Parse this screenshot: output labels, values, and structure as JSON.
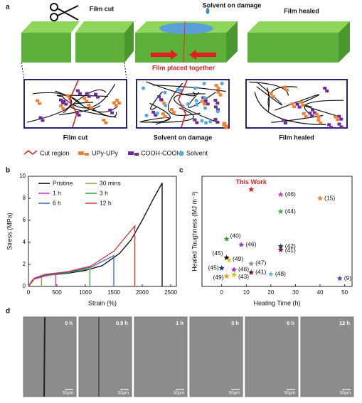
{
  "panel_a": {
    "label": "a",
    "top_labels": [
      "Film cut",
      "Solvent on damage",
      "Film healed"
    ],
    "middle_label": "Film placed together",
    "bottom_labels": [
      "Film cut",
      "Solvent on damage",
      "Film healed"
    ],
    "legend": [
      "Cut region",
      "UPy-UPy",
      "COOH-COOH",
      "Solvent"
    ]
  },
  "chart_data": [
    {
      "type": "line",
      "label": "b",
      "xlabel": "Strain (%)",
      "ylabel": "Stress (MPa)",
      "xlim": [
        0,
        2600
      ],
      "xticks": [
        0,
        500,
        1000,
        1500,
        2000,
        2500
      ],
      "ylim": [
        0,
        10
      ],
      "yticks": [
        0,
        2,
        4,
        6,
        8,
        10
      ],
      "series": [
        {
          "name": "Pristine",
          "color": "#000000",
          "x": [
            0,
            100,
            300,
            700,
            1000,
            1300,
            1600,
            1800,
            2000,
            2200,
            2350,
            2350
          ],
          "values": [
            0,
            0.7,
            1.0,
            1.2,
            1.45,
            1.9,
            3.0,
            4.2,
            6.0,
            8.0,
            9.4,
            0
          ]
        },
        {
          "name": "30 mins",
          "color": "#8a9a3a",
          "x": [
            0,
            60,
            150,
            230,
            230
          ],
          "values": [
            0,
            0.55,
            0.8,
            0.9,
            0
          ]
        },
        {
          "name": "1 h",
          "color": "#d62fc8",
          "x": [
            0,
            100,
            300,
            480,
            480
          ],
          "values": [
            0,
            0.65,
            0.95,
            1.1,
            0
          ]
        },
        {
          "name": "3 h",
          "color": "#3aa03a",
          "x": [
            0,
            100,
            300,
            700,
            1080,
            1080
          ],
          "values": [
            0,
            0.7,
            1.0,
            1.25,
            1.6,
            0
          ]
        },
        {
          "name": "6 h",
          "color": "#3a5fd0",
          "x": [
            0,
            100,
            300,
            700,
            1100,
            1500,
            1500
          ],
          "values": [
            0,
            0.7,
            1.05,
            1.3,
            1.75,
            2.8,
            0
          ]
        },
        {
          "name": "12 h",
          "color": "#e03030",
          "x": [
            0,
            100,
            300,
            700,
            1100,
            1500,
            1870,
            1870
          ],
          "values": [
            0,
            0.75,
            1.1,
            1.35,
            1.85,
            3.2,
            5.5,
            0
          ]
        }
      ]
    },
    {
      "type": "scatter",
      "label": "c",
      "xlabel": "Healing Time (h)",
      "ylabel": "Healed Toughness (MJ m⁻³)",
      "xlim": [
        -8,
        53
      ],
      "xticks": [
        0,
        10,
        20,
        30,
        40,
        50
      ],
      "ylim": [
        0,
        50
      ],
      "marker": "star",
      "x": [
        12,
        24,
        40,
        24,
        2,
        8,
        24,
        24,
        2,
        3,
        12,
        0,
        5,
        12,
        20,
        2,
        5,
        48
      ],
      "values": [
        44,
        41.7,
        40,
        34,
        21.5,
        18.9,
        18.2,
        16.6,
        13,
        12,
        10.3,
        8.3,
        7.6,
        6.3,
        5.6,
        4.6,
        5.3,
        3.6
      ],
      "labels": [
        "This Work",
        "(46)",
        "(15)",
        "(44)",
        "(40)",
        "(46)",
        "(42)",
        "(41)",
        "(45)",
        "(49)",
        "(47)",
        "(45)",
        "(46)",
        "(41)",
        "(48)",
        "(49)",
        "(43)",
        "(9)"
      ],
      "colors": [
        "#e02020",
        "#c040c0",
        "#f08020",
        "#40b040",
        "#30a040",
        "#a030c0",
        "#203080",
        "#801020",
        "#000000",
        "#e0c020",
        "#909090",
        "#203080",
        "#a030c0",
        "#801020",
        "#60c0e0",
        "#f0a020",
        "#e0c020",
        "#6040c0"
      ]
    }
  ],
  "panel_d": {
    "label": "d",
    "images": [
      {
        "time": "0 h",
        "scale": "50μm"
      },
      {
        "time": "0.5 h",
        "scale": "50μm"
      },
      {
        "time": "1 h",
        "scale": "50μm"
      },
      {
        "time": "3 h",
        "scale": "50μm"
      },
      {
        "time": "6 h",
        "scale": "50μm"
      },
      {
        "time": "12 h",
        "scale": "50μm"
      }
    ]
  }
}
